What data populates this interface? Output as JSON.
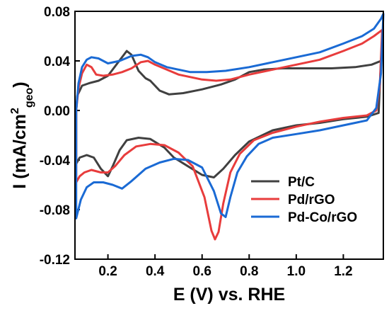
{
  "chart_data": {
    "type": "line",
    "xlabel": "E (V) vs. RHE",
    "ylabel": {
      "main": "I (mA/cm",
      "sup": "2",
      "sub": "geo",
      "close": ")"
    },
    "xlim": [
      0.06,
      1.37
    ],
    "ylim": [
      -0.12,
      0.08
    ],
    "x_ticks": [
      0.2,
      0.4,
      0.6,
      0.8,
      1.0,
      1.2
    ],
    "x_tick_labels": [
      "0.2",
      "0.4",
      "0.6",
      "0.8",
      "1.0",
      "1.2"
    ],
    "y_ticks": [
      0.08,
      0.04,
      0.0,
      -0.04,
      -0.08,
      -0.12
    ],
    "y_tick_labels": [
      "0.08",
      "0.04",
      "0.00",
      "-0.04",
      "-0.08",
      "-0.12"
    ],
    "grid": false,
    "legend_position": "bottom-right",
    "series": [
      {
        "name": "Pt/C",
        "color": "#404040",
        "anodic": [
          [
            0.065,
            0.0
          ],
          [
            0.07,
            0.012
          ],
          [
            0.09,
            0.02
          ],
          [
            0.12,
            0.022
          ],
          [
            0.16,
            0.024
          ],
          [
            0.2,
            0.028
          ],
          [
            0.24,
            0.038
          ],
          [
            0.28,
            0.048
          ],
          [
            0.3,
            0.045
          ],
          [
            0.33,
            0.032
          ],
          [
            0.36,
            0.026
          ],
          [
            0.38,
            0.024
          ],
          [
            0.42,
            0.016
          ],
          [
            0.46,
            0.013
          ],
          [
            0.52,
            0.014
          ],
          [
            0.6,
            0.017
          ],
          [
            0.68,
            0.021
          ],
          [
            0.74,
            0.025
          ],
          [
            0.8,
            0.031
          ],
          [
            0.86,
            0.033
          ],
          [
            0.94,
            0.034
          ],
          [
            1.05,
            0.034
          ],
          [
            1.15,
            0.034
          ],
          [
            1.25,
            0.035
          ],
          [
            1.32,
            0.037
          ],
          [
            1.36,
            0.04
          ]
        ],
        "cathodic": [
          [
            1.36,
            0.04
          ],
          [
            1.35,
            -0.002
          ],
          [
            1.3,
            -0.005
          ],
          [
            1.2,
            -0.007
          ],
          [
            1.1,
            -0.01
          ],
          [
            1.0,
            -0.012
          ],
          [
            0.9,
            -0.016
          ],
          [
            0.8,
            -0.025
          ],
          [
            0.74,
            -0.036
          ],
          [
            0.69,
            -0.047
          ],
          [
            0.65,
            -0.054
          ],
          [
            0.6,
            -0.052
          ],
          [
            0.54,
            -0.045
          ],
          [
            0.48,
            -0.038
          ],
          [
            0.44,
            -0.03
          ],
          [
            0.38,
            -0.023
          ],
          [
            0.33,
            -0.022
          ],
          [
            0.28,
            -0.024
          ],
          [
            0.25,
            -0.032
          ],
          [
            0.22,
            -0.045
          ],
          [
            0.2,
            -0.053
          ],
          [
            0.17,
            -0.047
          ],
          [
            0.14,
            -0.038
          ],
          [
            0.11,
            -0.036
          ],
          [
            0.08,
            -0.038
          ],
          [
            0.065,
            -0.043
          ]
        ]
      },
      {
        "name": "Pd/rGO",
        "color": "#e83c3c",
        "anodic": [
          [
            0.065,
            0.0
          ],
          [
            0.075,
            0.018
          ],
          [
            0.09,
            0.03
          ],
          [
            0.11,
            0.037
          ],
          [
            0.13,
            0.035
          ],
          [
            0.15,
            0.029
          ],
          [
            0.18,
            0.028
          ],
          [
            0.22,
            0.029
          ],
          [
            0.26,
            0.031
          ],
          [
            0.3,
            0.034
          ],
          [
            0.34,
            0.039
          ],
          [
            0.37,
            0.04
          ],
          [
            0.4,
            0.037
          ],
          [
            0.45,
            0.033
          ],
          [
            0.5,
            0.029
          ],
          [
            0.55,
            0.027
          ],
          [
            0.6,
            0.025
          ],
          [
            0.66,
            0.024
          ],
          [
            0.72,
            0.025
          ],
          [
            0.8,
            0.029
          ],
          [
            0.9,
            0.033
          ],
          [
            1.0,
            0.037
          ],
          [
            1.1,
            0.041
          ],
          [
            1.2,
            0.048
          ],
          [
            1.28,
            0.054
          ],
          [
            1.33,
            0.06
          ],
          [
            1.365,
            0.065
          ]
        ],
        "cathodic": [
          [
            1.365,
            0.065
          ],
          [
            1.355,
            0.02
          ],
          [
            1.34,
            0.0
          ],
          [
            1.3,
            -0.004
          ],
          [
            1.2,
            -0.006
          ],
          [
            1.1,
            -0.009
          ],
          [
            1.0,
            -0.013
          ],
          [
            0.9,
            -0.018
          ],
          [
            0.82,
            -0.024
          ],
          [
            0.76,
            -0.035
          ],
          [
            0.72,
            -0.05
          ],
          [
            0.69,
            -0.075
          ],
          [
            0.67,
            -0.098
          ],
          [
            0.655,
            -0.104
          ],
          [
            0.64,
            -0.097
          ],
          [
            0.61,
            -0.07
          ],
          [
            0.56,
            -0.045
          ],
          [
            0.5,
            -0.034
          ],
          [
            0.44,
            -0.028
          ],
          [
            0.38,
            -0.027
          ],
          [
            0.32,
            -0.029
          ],
          [
            0.27,
            -0.036
          ],
          [
            0.23,
            -0.045
          ],
          [
            0.2,
            -0.05
          ],
          [
            0.17,
            -0.05
          ],
          [
            0.13,
            -0.048
          ],
          [
            0.1,
            -0.05
          ],
          [
            0.08,
            -0.053
          ],
          [
            0.065,
            -0.058
          ]
        ]
      },
      {
        "name": "Pd-Co/rGO",
        "color": "#1a6ad4",
        "anodic": [
          [
            0.065,
            0.0
          ],
          [
            0.075,
            0.022
          ],
          [
            0.09,
            0.035
          ],
          [
            0.11,
            0.041
          ],
          [
            0.13,
            0.043
          ],
          [
            0.16,
            0.042
          ],
          [
            0.2,
            0.038
          ],
          [
            0.25,
            0.04
          ],
          [
            0.3,
            0.044
          ],
          [
            0.34,
            0.045
          ],
          [
            0.37,
            0.043
          ],
          [
            0.4,
            0.039
          ],
          [
            0.45,
            0.035
          ],
          [
            0.5,
            0.033
          ],
          [
            0.55,
            0.031
          ],
          [
            0.62,
            0.031
          ],
          [
            0.7,
            0.032
          ],
          [
            0.8,
            0.035
          ],
          [
            0.9,
            0.039
          ],
          [
            1.0,
            0.043
          ],
          [
            1.1,
            0.047
          ],
          [
            1.2,
            0.054
          ],
          [
            1.28,
            0.06
          ],
          [
            1.33,
            0.066
          ],
          [
            1.36,
            0.074
          ],
          [
            1.37,
            0.078
          ]
        ],
        "cathodic": [
          [
            1.37,
            0.078
          ],
          [
            1.36,
            0.03
          ],
          [
            1.34,
            0.002
          ],
          [
            1.3,
            -0.008
          ],
          [
            1.2,
            -0.012
          ],
          [
            1.1,
            -0.016
          ],
          [
            1.0,
            -0.019
          ],
          [
            0.9,
            -0.022
          ],
          [
            0.84,
            -0.027
          ],
          [
            0.79,
            -0.037
          ],
          [
            0.75,
            -0.05
          ],
          [
            0.72,
            -0.07
          ],
          [
            0.7,
            -0.086
          ],
          [
            0.68,
            -0.083
          ],
          [
            0.65,
            -0.065
          ],
          [
            0.6,
            -0.046
          ],
          [
            0.54,
            -0.04
          ],
          [
            0.48,
            -0.039
          ],
          [
            0.42,
            -0.042
          ],
          [
            0.36,
            -0.047
          ],
          [
            0.3,
            -0.057
          ],
          [
            0.26,
            -0.063
          ],
          [
            0.22,
            -0.06
          ],
          [
            0.18,
            -0.058
          ],
          [
            0.14,
            -0.058
          ],
          [
            0.11,
            -0.062
          ],
          [
            0.085,
            -0.072
          ],
          [
            0.065,
            -0.087
          ]
        ]
      }
    ]
  }
}
